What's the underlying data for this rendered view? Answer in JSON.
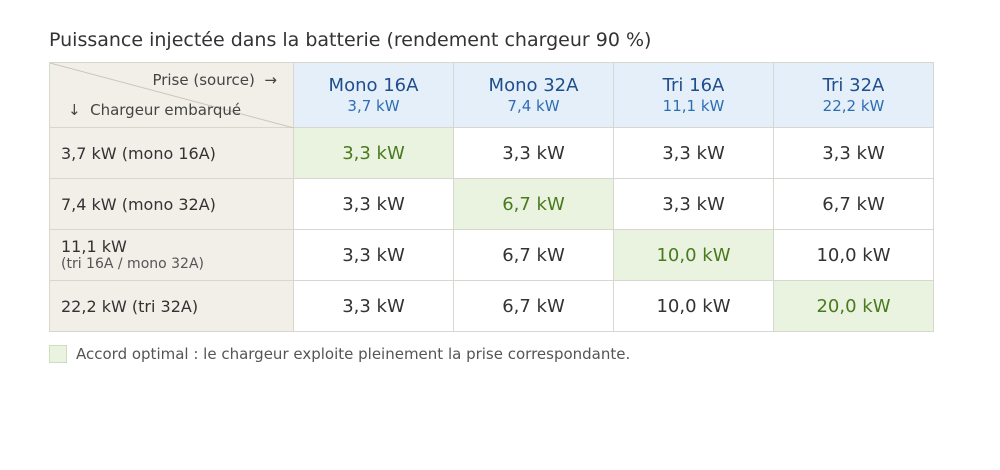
{
  "header": {
    "title": "Puissance injectée dans la batterie (rendement chargeur 90 %)"
  },
  "table": {
    "corner": {
      "top": "Prise (source)  →",
      "bottom": "↓  Chargeur embarqué"
    },
    "columns": [
      {
        "name": "Mono 16A",
        "power": "3,7 kW"
      },
      {
        "name": "Mono 32A",
        "power": "7,4 kW"
      },
      {
        "name": "Tri 16A",
        "power": "11,1 kW"
      },
      {
        "name": "Tri 32A",
        "power": "22,2 kW"
      }
    ],
    "rows": [
      {
        "label": "3,7 kW (mono 16A)",
        "cells": [
          "3,3 kW",
          "3,3 kW",
          "3,3 kW",
          "3,3 kW"
        ]
      },
      {
        "label": "7,4 kW (mono 32A)",
        "cells": [
          "3,3 kW",
          "6,7 kW",
          "3,3 kW",
          "6,7 kW"
        ]
      },
      {
        "label": "11,1 kW",
        "note": "(tri 16A / mono 32A)",
        "cells": [
          "3,3 kW",
          "6,7 kW",
          "10,0 kW",
          "10,0 kW"
        ]
      },
      {
        "label": "22,2 kW (tri 32A)",
        "cells": [
          "3,3 kW",
          "6,7 kW",
          "10,0 kW",
          "20,0 kW"
        ]
      }
    ]
  },
  "legend": {
    "text": "Accord optimal : le chargeur exploite pleinement la prise correspondante."
  }
}
